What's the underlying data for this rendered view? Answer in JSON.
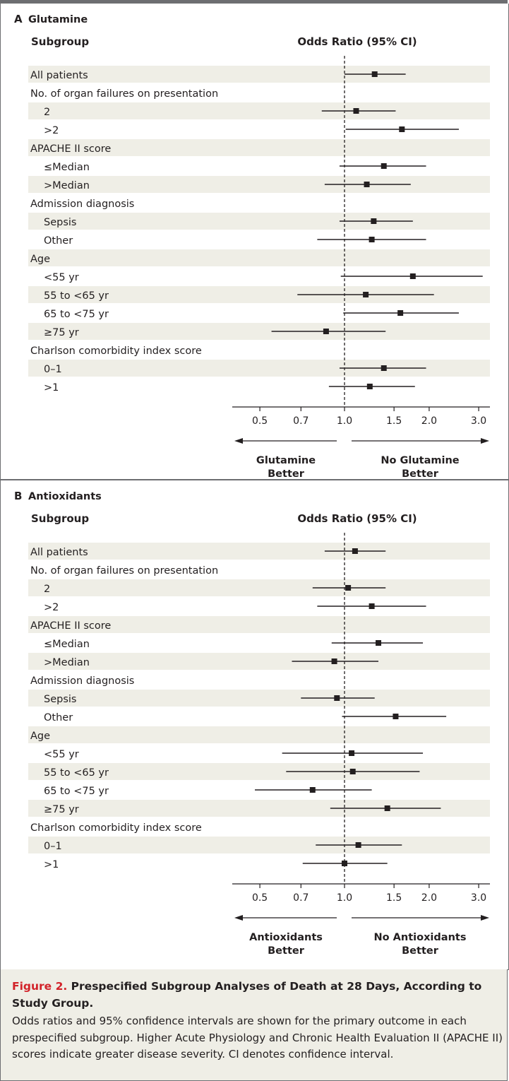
{
  "caption": {
    "figure_label": "Figure 2.",
    "title": "Prespecified Subgroup Analyses of Death at 28 Days, According to Study Group.",
    "body": "Odds ratios and 95% confidence intervals are shown for the primary outcome in each prespecified subgroup. Higher Acute Physiology and Chronic Health Evaluation II (APACHE II) scores indicate greater disease severity. CI denotes confidence interval."
  },
  "colors": {
    "row_band": "#efeee6",
    "frame": "#6d6e71",
    "ink": "#231f20",
    "caption_bg": "#efeee6",
    "figure_label": "#d2232a"
  },
  "chart_data": [
    {
      "type": "forest",
      "panel_letter": "A",
      "title": "Glutamine",
      "column_headers": {
        "subgroup": "Subgroup",
        "estimate": "Odds Ratio (95% CI)"
      },
      "x_scale": "log",
      "xlim": [
        0.4,
        3.1
      ],
      "reference_line": 1.0,
      "ticks": [
        0.5,
        0.7,
        1.0,
        1.5,
        2.0,
        3.0
      ],
      "tick_labels": [
        "0.5",
        "0.7",
        "1.0",
        "1.5",
        "2.0",
        "3.0"
      ],
      "favors_left": [
        "Glutamine",
        "Better"
      ],
      "favors_right": [
        "No Glutamine",
        "Better"
      ],
      "rows": [
        {
          "label": "All patients",
          "indent": 0,
          "or": 1.28,
          "lo": 1.0,
          "hi": 1.65
        },
        {
          "label": "No. of organ failures on presentation",
          "indent": 0
        },
        {
          "label": "2",
          "indent": 1,
          "or": 1.1,
          "lo": 0.83,
          "hi": 1.52
        },
        {
          "label": ">2",
          "indent": 1,
          "or": 1.6,
          "lo": 1.01,
          "hi": 2.55
        },
        {
          "label": "APACHE II score",
          "indent": 0
        },
        {
          "label": "≤Median",
          "indent": 1,
          "or": 1.38,
          "lo": 0.96,
          "hi": 1.95
        },
        {
          "label": ">Median",
          "indent": 1,
          "or": 1.2,
          "lo": 0.85,
          "hi": 1.72
        },
        {
          "label": "Admission diagnosis",
          "indent": 0
        },
        {
          "label": "Sepsis",
          "indent": 1,
          "or": 1.27,
          "lo": 0.96,
          "hi": 1.75
        },
        {
          "label": "Other",
          "indent": 1,
          "or": 1.25,
          "lo": 0.8,
          "hi": 1.95
        },
        {
          "label": "Age",
          "indent": 0
        },
        {
          "label": "<55 yr",
          "indent": 1,
          "or": 1.75,
          "lo": 0.97,
          "hi": 3.1
        },
        {
          "label": "55 to <65 yr",
          "indent": 1,
          "or": 1.19,
          "lo": 0.68,
          "hi": 2.08
        },
        {
          "label": "65 to <75 yr",
          "indent": 1,
          "or": 1.58,
          "lo": 0.99,
          "hi": 2.55
        },
        {
          "label": "≥75 yr",
          "indent": 1,
          "or": 0.86,
          "lo": 0.55,
          "hi": 1.4
        },
        {
          "label": "Charlson comorbidity index score",
          "indent": 0
        },
        {
          "label": "0–1",
          "indent": 1,
          "or": 1.38,
          "lo": 0.96,
          "hi": 1.95
        },
        {
          "label": ">1",
          "indent": 1,
          "or": 1.23,
          "lo": 0.88,
          "hi": 1.78
        }
      ]
    },
    {
      "type": "forest",
      "panel_letter": "B",
      "title": "Antioxidants",
      "column_headers": {
        "subgroup": "Subgroup",
        "estimate": "Odds Ratio (95% CI)"
      },
      "x_scale": "log",
      "xlim": [
        0.4,
        3.1
      ],
      "reference_line": 1.0,
      "ticks": [
        0.5,
        0.7,
        1.0,
        1.5,
        2.0,
        3.0
      ],
      "tick_labels": [
        "0.5",
        "0.7",
        "1.0",
        "1.5",
        "2.0",
        "3.0"
      ],
      "favors_left": [
        "Antioxidants",
        "Better"
      ],
      "favors_right": [
        "No Antioxidants",
        "Better"
      ],
      "rows": [
        {
          "label": "All patients",
          "indent": 0,
          "or": 1.09,
          "lo": 0.85,
          "hi": 1.4
        },
        {
          "label": "No. of organ failures on presentation",
          "indent": 0
        },
        {
          "label": "2",
          "indent": 1,
          "or": 1.03,
          "lo": 0.77,
          "hi": 1.4
        },
        {
          "label": ">2",
          "indent": 1,
          "or": 1.25,
          "lo": 0.8,
          "hi": 1.95
        },
        {
          "label": "APACHE II score",
          "indent": 0
        },
        {
          "label": "≤Median",
          "indent": 1,
          "or": 1.32,
          "lo": 0.9,
          "hi": 1.9
        },
        {
          "label": ">Median",
          "indent": 1,
          "or": 0.92,
          "lo": 0.65,
          "hi": 1.32
        },
        {
          "label": "Admission diagnosis",
          "indent": 0
        },
        {
          "label": "Sepsis",
          "indent": 1,
          "or": 0.94,
          "lo": 0.7,
          "hi": 1.28
        },
        {
          "label": "Other",
          "indent": 1,
          "or": 1.52,
          "lo": 0.98,
          "hi": 2.3
        },
        {
          "label": "Age",
          "indent": 0
        },
        {
          "label": "<55 yr",
          "indent": 1,
          "or": 1.06,
          "lo": 0.6,
          "hi": 1.9
        },
        {
          "label": "55 to <65 yr",
          "indent": 1,
          "or": 1.07,
          "lo": 0.62,
          "hi": 1.85
        },
        {
          "label": "65 to <75 yr",
          "indent": 1,
          "or": 0.77,
          "lo": 0.48,
          "hi": 1.25
        },
        {
          "label": "≥75 yr",
          "indent": 1,
          "or": 1.42,
          "lo": 0.89,
          "hi": 2.2
        },
        {
          "label": "Charlson comorbidity index score",
          "indent": 0
        },
        {
          "label": "0–1",
          "indent": 1,
          "or": 1.12,
          "lo": 0.79,
          "hi": 1.6
        },
        {
          "label": ">1",
          "indent": 1,
          "or": 1.0,
          "lo": 0.71,
          "hi": 1.42
        }
      ]
    }
  ]
}
